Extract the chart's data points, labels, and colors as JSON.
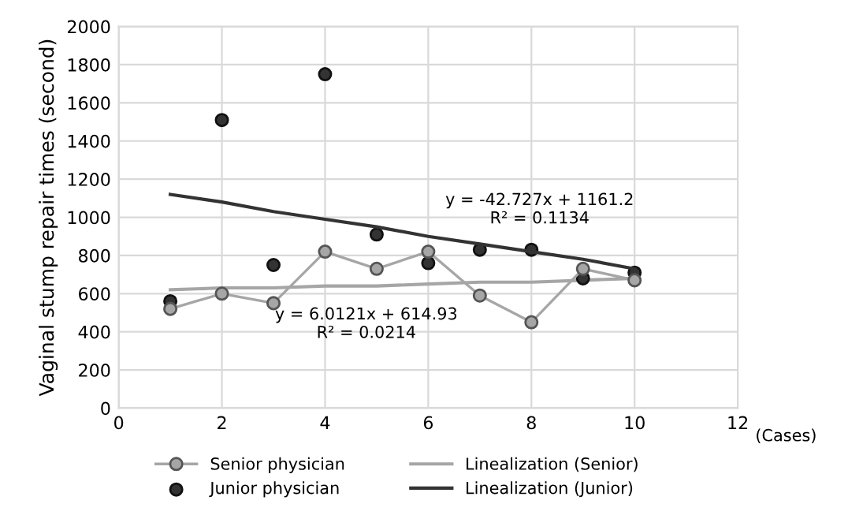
{
  "chart_data": {
    "type": "line",
    "ylabel": "Vaginal stump repair times (second)",
    "xlabel": "(Cases)",
    "xlim": [
      0,
      12
    ],
    "xticks": [
      0,
      2,
      4,
      6,
      8,
      10,
      12
    ],
    "ylim": [
      0,
      2000
    ],
    "yticks": [
      0,
      200,
      400,
      600,
      800,
      1000,
      1200,
      1400,
      1600,
      1800,
      2000
    ],
    "grid": true,
    "legend": "bottom",
    "x": [
      1,
      2,
      3,
      4,
      5,
      6,
      7,
      8,
      9,
      10
    ],
    "series": [
      {
        "name": "Senior physician",
        "marker": "circle",
        "color": "#a6a6a6",
        "values": [
          520,
          600,
          550,
          820,
          730,
          820,
          590,
          450,
          730,
          670
        ]
      },
      {
        "name": "Junior physician",
        "type": "scatter",
        "marker": "circle",
        "color": "#333333",
        "values": [
          560,
          1510,
          750,
          1750,
          910,
          760,
          830,
          830,
          680,
          710
        ]
      },
      {
        "name": "Linealization (Senior)",
        "marker": "none",
        "color": "#a6a6a6",
        "values": [
          620,
          630,
          630,
          640,
          640,
          650,
          660,
          660,
          670,
          680
        ]
      },
      {
        "name": "Linealization (Junior)",
        "marker": "none",
        "color": "#333333",
        "values": [
          1120,
          1080,
          1030,
          990,
          950,
          900,
          860,
          820,
          780,
          730
        ]
      }
    ],
    "annotations": [
      "y = -42.727x + 1161.2\nR² = 0.1134",
      "y = 6.0121x + 614.93\nR² = 0.0214"
    ]
  }
}
